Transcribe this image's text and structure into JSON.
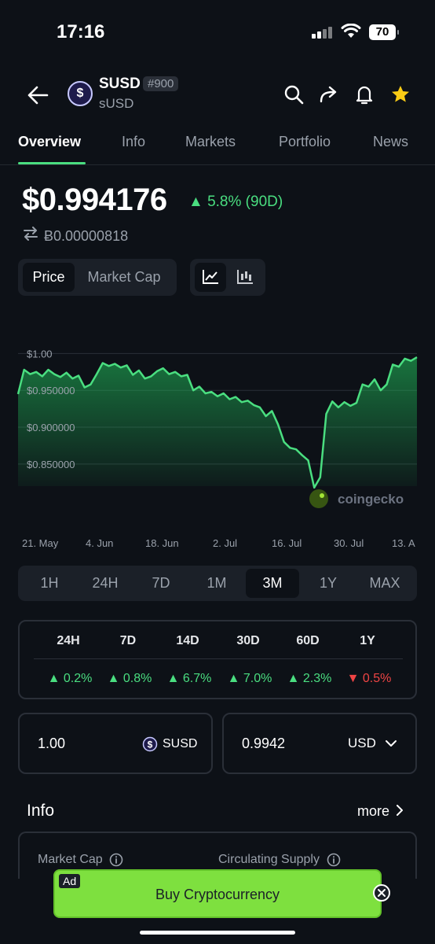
{
  "status_bar": {
    "time": "17:16",
    "battery": "70"
  },
  "coin": {
    "symbol": "SUSD",
    "rank": "#900",
    "name": "sUSD",
    "logo_glyph": "$"
  },
  "tabs": [
    {
      "label": "Overview"
    },
    {
      "label": "Info"
    },
    {
      "label": "Markets"
    },
    {
      "label": "Portfolio"
    },
    {
      "label": "News"
    }
  ],
  "price": {
    "value": "$0.994176",
    "change": "▲ 5.8% (90D)",
    "btc_value": "Ƀ0.00000818"
  },
  "metric_toggle": {
    "price_label": "Price",
    "market_cap_label": "Market Cap"
  },
  "chart_data": {
    "type": "area",
    "x_tick_labels": [
      "21. May",
      "4. Jun",
      "18. Jun",
      "2. Jul",
      "16. Jul",
      "30. Jul",
      "13. A"
    ],
    "y_tick_labels": [
      "$1.00",
      "$0.950000",
      "$0.900000",
      "$0.850000"
    ],
    "ylim": [
      0.82,
      1.01
    ],
    "watermark": "coingecko",
    "series": [
      {
        "color": "#4ade80",
        "values": [
          0.945,
          0.978,
          0.972,
          0.975,
          0.969,
          0.978,
          0.972,
          0.968,
          0.974,
          0.966,
          0.97,
          0.954,
          0.958,
          0.972,
          0.987,
          0.983,
          0.986,
          0.981,
          0.984,
          0.971,
          0.977,
          0.966,
          0.969,
          0.976,
          0.98,
          0.972,
          0.975,
          0.969,
          0.971,
          0.95,
          0.955,
          0.946,
          0.948,
          0.942,
          0.946,
          0.938,
          0.941,
          0.934,
          0.936,
          0.93,
          0.927,
          0.915,
          0.922,
          0.904,
          0.88,
          0.872,
          0.87,
          0.862,
          0.855,
          0.818,
          0.832,
          0.918,
          0.935,
          0.927,
          0.934,
          0.929,
          0.933,
          0.958,
          0.955,
          0.965,
          0.95,
          0.958,
          0.985,
          0.982,
          0.993,
          0.99,
          0.995
        ]
      }
    ],
    "grid": true
  },
  "time_ranges": [
    {
      "label": "1H"
    },
    {
      "label": "24H"
    },
    {
      "label": "7D"
    },
    {
      "label": "1M"
    },
    {
      "label": "3M"
    },
    {
      "label": "1Y"
    },
    {
      "label": "MAX"
    }
  ],
  "performance": [
    {
      "period": "24H",
      "change": "▲ 0.2%",
      "direction": "up"
    },
    {
      "period": "7D",
      "change": "▲ 0.8%",
      "direction": "up"
    },
    {
      "period": "14D",
      "change": "▲ 6.7%",
      "direction": "up"
    },
    {
      "period": "30D",
      "change": "▲ 7.0%",
      "direction": "up"
    },
    {
      "period": "60D",
      "change": "▲ 2.3%",
      "direction": "up"
    },
    {
      "period": "1Y",
      "change": "▼ 0.5%",
      "direction": "down"
    }
  ],
  "converter": {
    "amount": "1.00",
    "coin_unit": "SUSD",
    "fiat_amount": "0.9942",
    "fiat_unit": "USD"
  },
  "info": {
    "title": "Info",
    "more_label": "more",
    "market_cap_label": "Market Cap",
    "circulating_supply_label": "Circulating Supply"
  },
  "ad": {
    "tag": "Ad",
    "text": "Buy Cryptocurrency"
  },
  "colors": {
    "accent": "#4ade80",
    "negative": "#ef4444",
    "background": "#0d1117",
    "ad_green": "#7ee03f"
  }
}
